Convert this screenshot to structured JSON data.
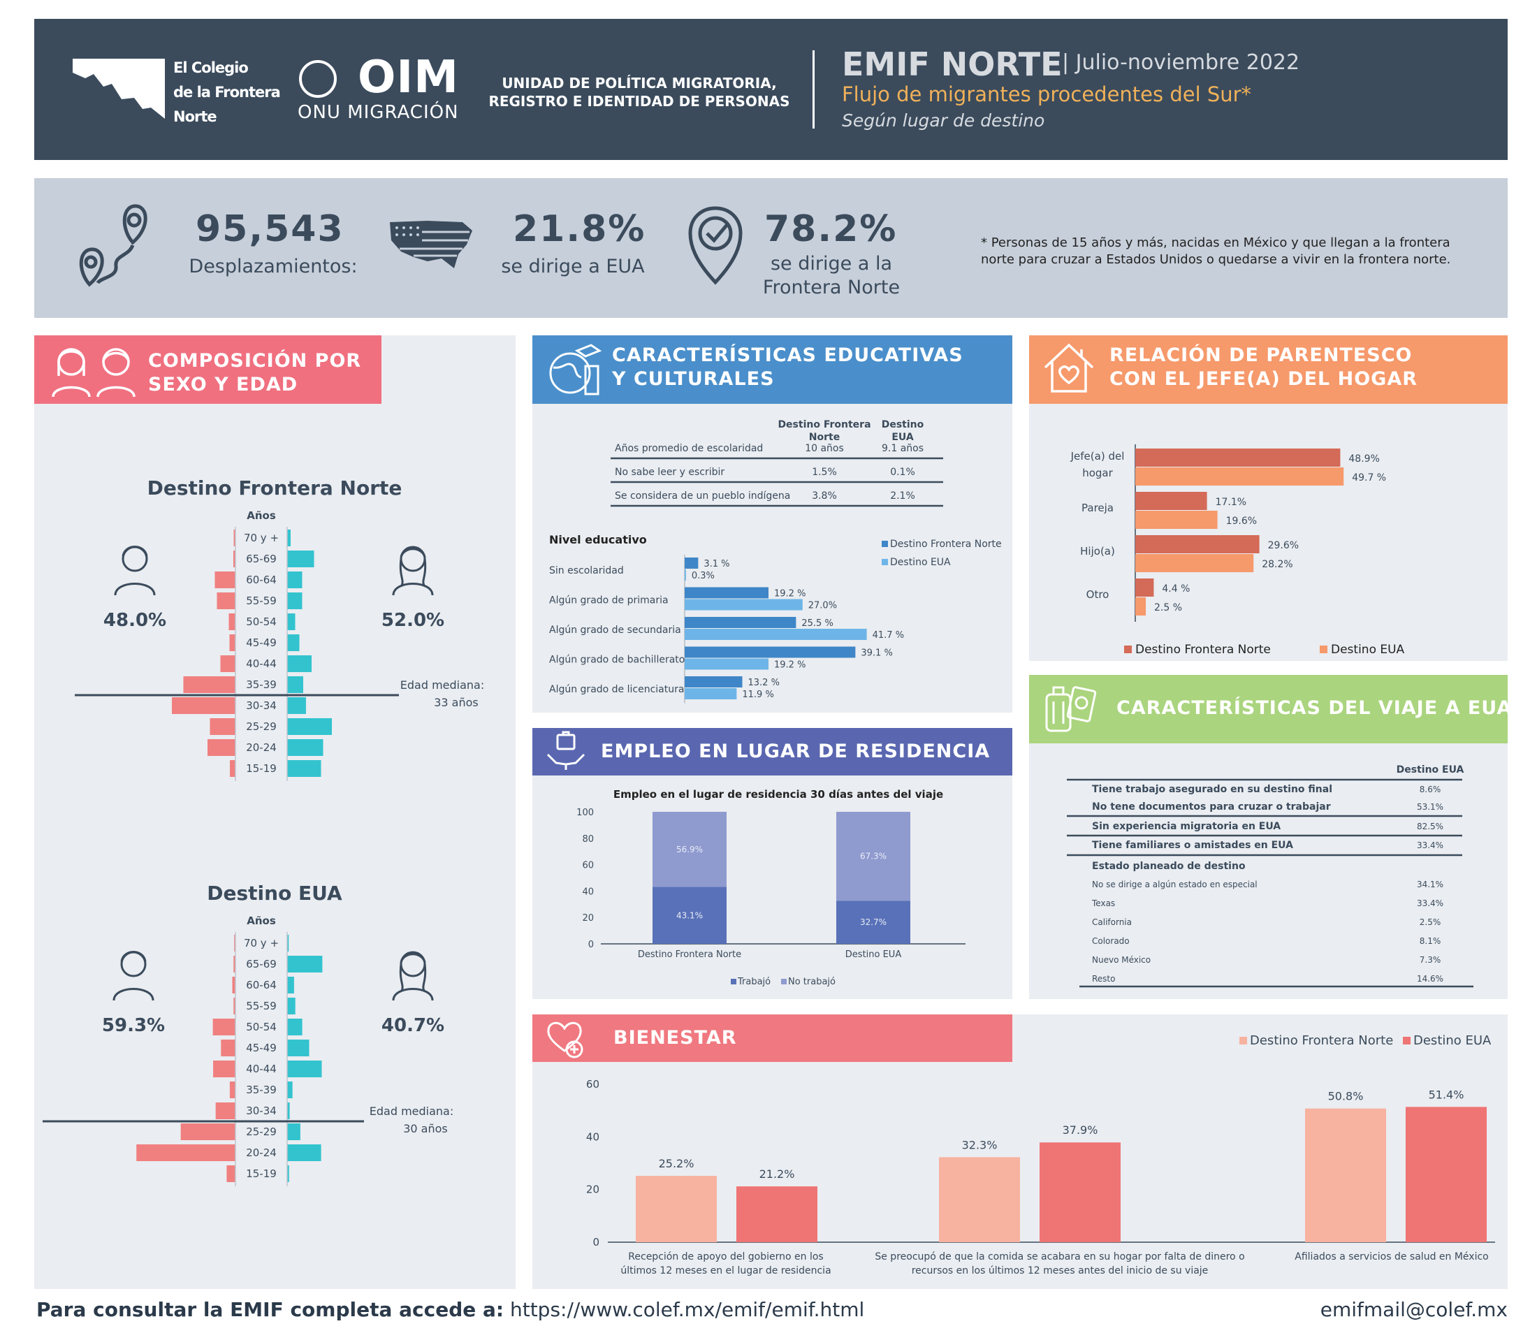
{
  "header": {
    "colegio": [
      "El Colegio",
      "de la Frontera",
      "Norte"
    ],
    "oim": "OIM",
    "oim_sub": "ONU MIGRACIÓN",
    "unidad": "UNIDAD DE POLÍTICA MIGRATORIA, REGISTRO E IDENTIDAD DE PERSONAS",
    "emif": "EMIF NORTE",
    "date": "| Julio-noviembre 2022",
    "flow": "Flujo de migrantes procedentes del Sur*",
    "segun": "Según lugar de destino"
  },
  "stats": {
    "displacements": "95,543",
    "displacements_label": "Desplazamientos:",
    "eua_pct": "21.8%",
    "eua_label": "se dirige a EUA",
    "fn_pct": "78.2%",
    "fn_label1": "se dirige a la",
    "fn_label2": "Frontera Norte",
    "note": "* Personas de 15 años y más, nacidas en México y que llegan a la frontera norte para cruzar a Estados Unidos o quedarse a vivir en la frontera norte."
  },
  "sections": {
    "sexo_edad": [
      "COMPOSICIÓN POR",
      "SEXO Y EDAD"
    ],
    "educ": [
      "CARACTERÍSTICAS EDUCATIVAS",
      "Y CULTURALES"
    ],
    "parentesco": [
      "RELACIÓN DE PARENTESCO",
      "CON EL JEFE(A) DEL HOGAR"
    ],
    "viaje": "CARACTERÍSTICAS DEL VIAJE A EUA",
    "empleo": "EMPLEO EN LUGAR DE RESIDENCIA",
    "bienestar": "BIENESTAR"
  },
  "colors": {
    "header": "#3b4b5c",
    "male": "#f08080",
    "female": "#33c3cf",
    "pink": "#f0707f",
    "blue_hdr": "#4a8fcb",
    "orange_hdr": "#f6996b",
    "green_hdr": "#aad47e",
    "purple_hdr": "#5a67b0"
  },
  "chart_data": [
    {
      "type": "bar",
      "title": "Destino Frontera Norte",
      "axis_label": "Años",
      "categories": [
        "70 y +",
        "65-69",
        "60-64",
        "55-59",
        "50-54",
        "45-49",
        "40-44",
        "35-39",
        "30-34",
        "25-29",
        "20-24",
        "15-19"
      ],
      "series": [
        {
          "name": "male",
          "values": [
            0.5,
            0.6,
            5.9,
            5.3,
            1.9,
            1.7,
            4.3,
            14.9,
            18.2,
            7.3,
            8.0,
            1.6
          ]
        },
        {
          "name": "female",
          "values": [
            1.0,
            7.7,
            4.3,
            4.3,
            2.3,
            3.5,
            7.0,
            4.6,
            5.4,
            12.8,
            10.3,
            9.7
          ]
        }
      ],
      "male_pct": "48.0%",
      "female_pct": "52.0%",
      "median_label": "Edad mediana:",
      "median_value": "33 años"
    },
    {
      "type": "bar",
      "title": "Destino EUA",
      "axis_label": "Años",
      "categories": [
        "70 y +",
        "65-69",
        "60-64",
        "55-59",
        "50-54",
        "45-49",
        "40-44",
        "35-39",
        "30-34",
        "25-29",
        "20-24",
        "15-19"
      ],
      "series": [
        {
          "name": "male",
          "values": [
            0.4,
            0.6,
            1.0,
            0.6,
            7.2,
            4.6,
            7.1,
            1.8,
            6.3,
            17.4,
            31.5,
            2.8
          ]
        },
        {
          "name": "female",
          "values": [
            0.5,
            11.2,
            2.2,
            2.6,
            4.8,
            7.0,
            11.0,
            1.7,
            0.8,
            4.2,
            10.8,
            0.6
          ]
        }
      ],
      "male_pct": "59.3%",
      "female_pct": "40.7%",
      "median_label": "Edad mediana:",
      "median_value": "30 años"
    },
    {
      "type": "table",
      "title": "Características educativas y culturales",
      "header": [
        "",
        "Destino Frontera Norte",
        "Destino EUA"
      ],
      "rows": [
        [
          "Años promedio de escolaridad",
          "10 años",
          "9.1 años"
        ],
        [
          "No sabe leer y escribir",
          "1.5%",
          "0.1%"
        ],
        [
          "Se considera de un pueblo indígena",
          "3.8%",
          "2.1%"
        ]
      ]
    },
    {
      "type": "bar",
      "title": "Nivel educativo",
      "categories": [
        "Sin escolaridad",
        "Algún grado de primaria",
        "Algún grado de secundaria",
        "Algún grado de bachillerato",
        "Algún grado de licenciatura"
      ],
      "series": [
        {
          "name": "Destino Frontera Norte",
          "values": [
            3.1,
            19.2,
            25.5,
            39.1,
            13.2
          ],
          "labels": [
            "3.1 %",
            "19.2 %",
            "25.5 %",
            "39.1 %",
            "13.2 %"
          ]
        },
        {
          "name": "Destino EUA",
          "values": [
            0.3,
            27.0,
            41.7,
            19.2,
            11.9
          ],
          "labels": [
            "0.3%",
            "27.0%",
            "41.7 %",
            "19.2 %",
            "11.9 %"
          ]
        }
      ]
    },
    {
      "type": "bar",
      "title": "Relación de parentesco con el jefe(a) del hogar",
      "categories": [
        "Jefe(a) del hogar",
        "Pareja",
        "Hijo(a)",
        "Otro"
      ],
      "category_lines": [
        [
          "Jefe(a) del",
          "hogar"
        ],
        [
          "Pareja"
        ],
        [
          "Hijo(a)"
        ],
        [
          "Otro"
        ]
      ],
      "series": [
        {
          "name": "Destino Frontera Norte",
          "values": [
            48.9,
            17.1,
            29.6,
            4.4
          ],
          "labels": [
            "48.9%",
            "17.1%",
            "29.6%",
            "4.4 %"
          ]
        },
        {
          "name": "Destino EUA",
          "values": [
            49.7,
            19.6,
            28.2,
            2.5
          ],
          "labels": [
            "49.7 %",
            "19.6%",
            "28.2%",
            "2.5 %"
          ]
        }
      ]
    },
    {
      "type": "table",
      "title": "Características del viaje a EUA",
      "header": "Destino EUA",
      "rows": [
        [
          "Tiene trabajo asegurado en su destino final",
          "8.6%"
        ],
        [
          "No tene documentos para cruzar o trabajar",
          "53.1%"
        ],
        [
          "Sin experiencia migratoria en EUA",
          "82.5%"
        ],
        [
          "Tiene familiares o amistades en EUA",
          "33.4%"
        ]
      ],
      "subheader": "Estado planeado de destino",
      "subrows": [
        [
          "No se dirige a algún estado en especial",
          "34.1%"
        ],
        [
          "Texas",
          "33.4%"
        ],
        [
          "California",
          "2.5%"
        ],
        [
          "Colorado",
          "8.1%"
        ],
        [
          "Nuevo México",
          "7.3%"
        ],
        [
          "Resto",
          "14.6%"
        ]
      ]
    },
    {
      "type": "bar",
      "title": "Empleo en el lugar de residencia 30 días antes del viaje",
      "categories": [
        "Destino Frontera Norte",
        "Destino EUA"
      ],
      "series": [
        {
          "name": "Trabajó",
          "values": [
            43.1,
            32.7
          ],
          "labels": [
            "43.1%",
            "32.7%"
          ]
        },
        {
          "name": "No trabajó",
          "values": [
            56.9,
            67.3
          ],
          "labels": [
            "56.9%",
            "67.3%"
          ]
        }
      ],
      "ylim": [
        0,
        100
      ],
      "yticks": [
        "0",
        "20",
        "40",
        "60",
        "80",
        "100"
      ]
    },
    {
      "type": "bar",
      "title": "Bienestar",
      "categories": [
        "Recepción de apoyo del gobierno en los últimos 12 meses en el lugar de residencia",
        "Se preocupó de que la comida se acabara en su hogar por falta de dinero o recursos en los últimos 12 meses antes del inicio de su viaje",
        "Afiliados a servicios de salud en México"
      ],
      "category_lines": [
        [
          "Recepción de apoyo del gobierno en los",
          "últimos 12 meses en el lugar de residencia"
        ],
        [
          "Se preocupó de que la comida se acabara en su hogar por falta de dinero o",
          "recursos  en los últimos 12 meses antes del inicio de su viaje"
        ],
        [
          "Afiliados a servicios de salud en México"
        ]
      ],
      "series": [
        {
          "name": "Destino Frontera Norte",
          "values": [
            25.2,
            32.3,
            50.8
          ],
          "labels": [
            "25.2%",
            "32.3%",
            "50.8%"
          ]
        },
        {
          "name": "Destino EUA",
          "values": [
            21.2,
            37.9,
            51.4
          ],
          "labels": [
            "21.2%",
            "37.9%",
            "51.4%"
          ]
        }
      ],
      "ylim": [
        0,
        60
      ],
      "yticks": [
        "0",
        "20",
        "40",
        "60"
      ]
    }
  ],
  "footer": {
    "consulta": "Para consultar la EMIF completa accede a:",
    "url": "https://www.colef.mx/emif/emif.html",
    "email": "emifmail@colef.mx"
  }
}
